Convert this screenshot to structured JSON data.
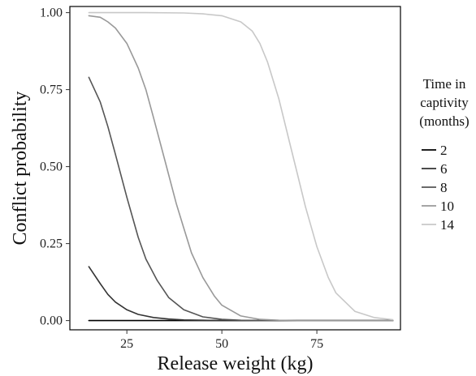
{
  "chart_data": {
    "type": "line",
    "title": "",
    "xlabel": "Release weight (kg)",
    "ylabel": "Conflict probability",
    "xlim": [
      10,
      97
    ],
    "ylim": [
      -0.03,
      1.02
    ],
    "x_ticks": [
      25,
      50,
      75
    ],
    "x_tick_labels": [
      "25",
      "50",
      "75"
    ],
    "y_ticks": [
      0,
      0.25,
      0.5,
      0.75,
      1.0
    ],
    "y_tick_labels": [
      "0.00",
      "0.25",
      "0.50",
      "0.75",
      "1.00"
    ],
    "grid": false,
    "legend": {
      "title_lines": [
        "Time in",
        "captivity",
        "(months)"
      ],
      "placement": "right"
    },
    "series": [
      {
        "name": "2",
        "color": "#000000",
        "x": [
          15,
          20,
          30,
          40,
          60,
          80,
          95
        ],
        "y": [
          0.0,
          0.0,
          0.0,
          0.0,
          0.0,
          0.0,
          0.0
        ]
      },
      {
        "name": "6",
        "color": "#333333",
        "x": [
          15,
          18,
          20,
          22,
          25,
          28,
          32,
          36,
          40,
          45,
          50,
          60,
          70,
          95
        ],
        "y": [
          0.175,
          0.12,
          0.085,
          0.06,
          0.035,
          0.02,
          0.01,
          0.005,
          0.002,
          0.001,
          0.0,
          0.0,
          0.0,
          0.0
        ]
      },
      {
        "name": "8",
        "color": "#555555",
        "x": [
          15,
          18,
          20,
          22,
          25,
          28,
          30,
          33,
          36,
          40,
          45,
          50,
          55,
          60,
          95
        ],
        "y": [
          0.79,
          0.71,
          0.63,
          0.54,
          0.4,
          0.27,
          0.2,
          0.13,
          0.075,
          0.035,
          0.012,
          0.004,
          0.001,
          0.0,
          0.0
        ]
      },
      {
        "name": "10",
        "color": "#999999",
        "x": [
          15,
          18,
          20,
          22,
          25,
          28,
          30,
          32,
          35,
          38,
          40,
          42,
          45,
          48,
          50,
          55,
          60,
          65,
          70,
          95
        ],
        "y": [
          0.99,
          0.985,
          0.97,
          0.95,
          0.9,
          0.82,
          0.75,
          0.66,
          0.52,
          0.38,
          0.3,
          0.22,
          0.14,
          0.08,
          0.05,
          0.015,
          0.004,
          0.001,
          0.0,
          0.0
        ]
      },
      {
        "name": "14",
        "color": "#c8c8c8",
        "x": [
          15,
          20,
          30,
          40,
          45,
          50,
          55,
          58,
          60,
          62,
          65,
          68,
          70,
          72,
          75,
          78,
          80,
          85,
          90,
          95
        ],
        "y": [
          1.0,
          1.0,
          1.0,
          0.999,
          0.996,
          0.99,
          0.97,
          0.94,
          0.9,
          0.84,
          0.72,
          0.57,
          0.47,
          0.37,
          0.24,
          0.14,
          0.09,
          0.03,
          0.01,
          0.003
        ]
      }
    ]
  }
}
